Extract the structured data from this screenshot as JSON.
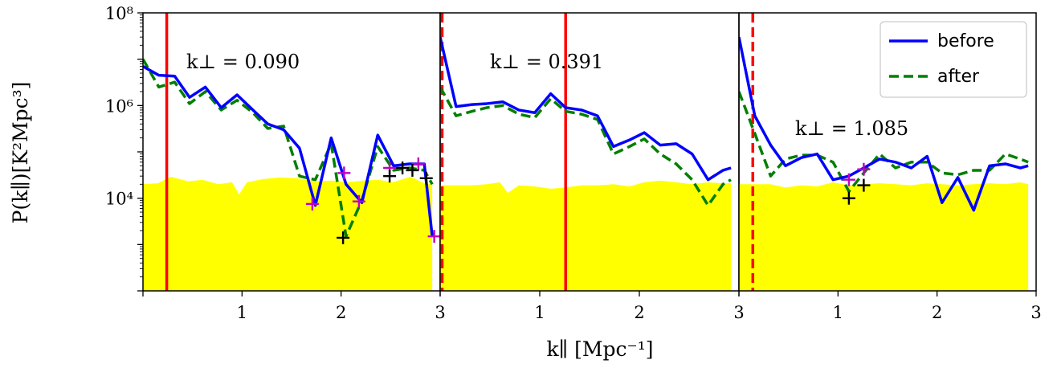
{
  "chart_data": {
    "type": "line",
    "shared_ylabel": "P(k∥)[K²Mpc³]",
    "shared_xlabel": "k∥ [Mpc⁻¹]",
    "yscale": "log",
    "ylim": [
      100,
      100000000
    ],
    "ytick_labels": [
      {
        "value": 100000000,
        "label": "10⁸"
      },
      {
        "value": 1000000,
        "label": "10⁶"
      },
      {
        "value": 10000,
        "label": "10⁴"
      }
    ],
    "legend": {
      "placement": "top-right",
      "entries": [
        {
          "label": "before",
          "color": "#0000ff",
          "style": "solid"
        },
        {
          "label": "after",
          "color": "#007f00",
          "style": "dashed"
        }
      ]
    },
    "colors": {
      "noise_fill": "#ffff00",
      "marker_magenta": "#c000c0",
      "marker_black": "#000000",
      "vline": "#ff0000"
    },
    "panels": [
      {
        "annotation": "k⊥ = 0.090",
        "xlim": [
          0,
          3
        ],
        "xtick_labels": [
          {
            "value": 1,
            "label": "1"
          },
          {
            "value": 2,
            "label": "2"
          },
          {
            "value": 3,
            "label": "3"
          }
        ],
        "vlines": [
          {
            "x": 0.24,
            "style": "solid"
          }
        ],
        "series": [
          {
            "name": "before",
            "x": [
              0.0,
              0.16,
              0.32,
              0.47,
              0.63,
              0.79,
              0.95,
              1.11,
              1.26,
              1.42,
              1.58,
              1.74,
              1.9,
              2.05,
              2.21,
              2.37,
              2.53,
              2.69,
              2.84,
              2.92
            ],
            "y": [
              7000000,
              4500000,
              4300000,
              1500000,
              2500000,
              900000,
              1700000,
              800000,
              400000,
              300000,
              120000,
              7000,
              200000,
              20000,
              8000,
              230000,
              50000,
              55000,
              55000,
              1500
            ]
          },
          {
            "name": "after",
            "x": [
              0.0,
              0.16,
              0.32,
              0.47,
              0.63,
              0.79,
              0.95,
              1.11,
              1.26,
              1.42,
              1.58,
              1.74,
              1.9,
              2.05,
              2.21,
              2.37,
              2.53,
              2.69,
              2.84,
              2.92
            ],
            "y": [
              10000000,
              2500000,
              3200000,
              1100000,
              2000000,
              800000,
              1300000,
              700000,
              320000,
              360000,
              30000,
              25000,
              150000,
              1500,
              9000,
              130000,
              40000,
              45000,
              40000,
              20000
            ]
          }
        ],
        "noise_floor": {
          "x": [
            0.0,
            0.15,
            0.28,
            0.46,
            0.6,
            0.76,
            0.9,
            0.97,
            1.05,
            1.22,
            1.38,
            1.56,
            1.74,
            1.9,
            2.06,
            2.22,
            2.38,
            2.52,
            2.7,
            2.86,
            2.92
          ],
          "y": [
            20000,
            21000,
            29000,
            23000,
            25000,
            20000,
            22000,
            12000,
            22000,
            26000,
            28000,
            27000,
            23000,
            24000,
            22000,
            24000,
            25000,
            22000,
            29000,
            20000,
            20000
          ]
        },
        "markers_magenta": [
          [
            1.71,
            7500
          ],
          [
            2.03,
            35000
          ],
          [
            2.18,
            8500
          ],
          [
            2.49,
            45000
          ],
          [
            2.78,
            55000
          ],
          [
            2.94,
            1500
          ]
        ],
        "markers_black": [
          [
            2.02,
            1400
          ],
          [
            2.49,
            30000
          ],
          [
            2.62,
            45000
          ],
          [
            2.72,
            40000
          ],
          [
            2.86,
            27000
          ]
        ]
      },
      {
        "annotation": "k⊥ = 0.391",
        "xlim": [
          0,
          3
        ],
        "xtick_labels": [
          {
            "value": 1,
            "label": "1"
          },
          {
            "value": 2,
            "label": "2"
          },
          {
            "value": 3,
            "label": "3"
          }
        ],
        "vlines": [
          {
            "x": 0.02,
            "style": "dashed"
          },
          {
            "x": 1.26,
            "style": "solid"
          }
        ],
        "series": [
          {
            "name": "before",
            "x": [
              0.0,
              0.16,
              0.32,
              0.47,
              0.63,
              0.79,
              0.95,
              1.11,
              1.26,
              1.42,
              1.58,
              1.74,
              1.9,
              2.05,
              2.21,
              2.37,
              2.53,
              2.69,
              2.84,
              2.92
            ],
            "y": [
              30000000,
              950000,
              1050000,
              1100000,
              1200000,
              800000,
              700000,
              1800000,
              900000,
              800000,
              600000,
              130000,
              180000,
              260000,
              140000,
              150000,
              90000,
              25000,
              40000,
              45000
            ]
          },
          {
            "name": "after",
            "x": [
              0.0,
              0.16,
              0.32,
              0.47,
              0.63,
              0.79,
              0.95,
              1.11,
              1.26,
              1.42,
              1.58,
              1.74,
              1.9,
              2.05,
              2.21,
              2.37,
              2.53,
              2.69,
              2.84,
              2.92
            ],
            "y": [
              2500000,
              600000,
              750000,
              900000,
              1000000,
              650000,
              550000,
              1400000,
              750000,
              650000,
              500000,
              90000,
              130000,
              190000,
              90000,
              55000,
              25000,
              7000,
              20000,
              25000
            ]
          }
        ],
        "noise_floor": {
          "x": [
            0.0,
            0.16,
            0.32,
            0.47,
            0.6,
            0.68,
            0.79,
            0.95,
            1.11,
            1.26,
            1.42,
            1.58,
            1.74,
            1.9,
            2.05,
            2.21,
            2.37,
            2.53,
            2.69,
            2.84,
            2.92
          ],
          "y": [
            19000,
            19000,
            19000,
            20000,
            22000,
            13000,
            19000,
            18000,
            16000,
            17000,
            19000,
            19000,
            20000,
            18000,
            22000,
            24000,
            22000,
            20000,
            22000,
            21000,
            21000
          ]
        },
        "markers_magenta": [],
        "markers_black": []
      },
      {
        "annotation": "k⊥ = 1.085",
        "xlim": [
          0,
          3
        ],
        "xtick_labels": [
          {
            "value": 1,
            "label": "1"
          },
          {
            "value": 2,
            "label": "2"
          },
          {
            "value": 3,
            "label": "3"
          }
        ],
        "vlines": [
          {
            "x": 0.14,
            "style": "dashed"
          }
        ],
        "series": [
          {
            "name": "before",
            "x": [
              0.0,
              0.16,
              0.32,
              0.47,
              0.63,
              0.79,
              0.95,
              1.11,
              1.26,
              1.42,
              1.58,
              1.74,
              1.9,
              2.05,
              2.21,
              2.37,
              2.53,
              2.69,
              2.84,
              2.92
            ],
            "y": [
              30000000,
              600000,
              140000,
              50000,
              75000,
              90000,
              25000,
              30000,
              45000,
              70000,
              60000,
              45000,
              80000,
              8000,
              28000,
              5500,
              50000,
              55000,
              45000,
              50000
            ]
          },
          {
            "name": "after",
            "x": [
              0.0,
              0.16,
              0.32,
              0.47,
              0.63,
              0.79,
              0.95,
              1.11,
              1.26,
              1.42,
              1.58,
              1.74,
              1.9,
              2.05,
              2.21,
              2.37,
              2.53,
              2.69,
              2.84,
              2.92
            ],
            "y": [
              2000000,
              250000,
              30000,
              70000,
              85000,
              85000,
              60000,
              14000,
              35000,
              90000,
              45000,
              60000,
              60000,
              35000,
              32000,
              40000,
              40000,
              90000,
              70000,
              60000
            ]
          }
        ],
        "noise_floor": {
          "x": [
            0.0,
            0.16,
            0.32,
            0.47,
            0.63,
            0.79,
            0.95,
            1.11,
            1.26,
            1.42,
            1.58,
            1.74,
            1.9,
            2.05,
            2.21,
            2.37,
            2.53,
            2.69,
            2.84,
            2.92
          ],
          "y": [
            20000,
            20000,
            20000,
            17000,
            19000,
            18000,
            22000,
            19000,
            20000,
            21000,
            20000,
            19000,
            21000,
            20000,
            19000,
            20000,
            21000,
            20000,
            22000,
            20000
          ]
        },
        "markers_magenta": [
          [
            1.11,
            25000
          ],
          [
            1.26,
            42000
          ]
        ],
        "markers_black": [
          [
            1.11,
            10000
          ],
          [
            1.26,
            19000
          ]
        ]
      }
    ]
  }
}
